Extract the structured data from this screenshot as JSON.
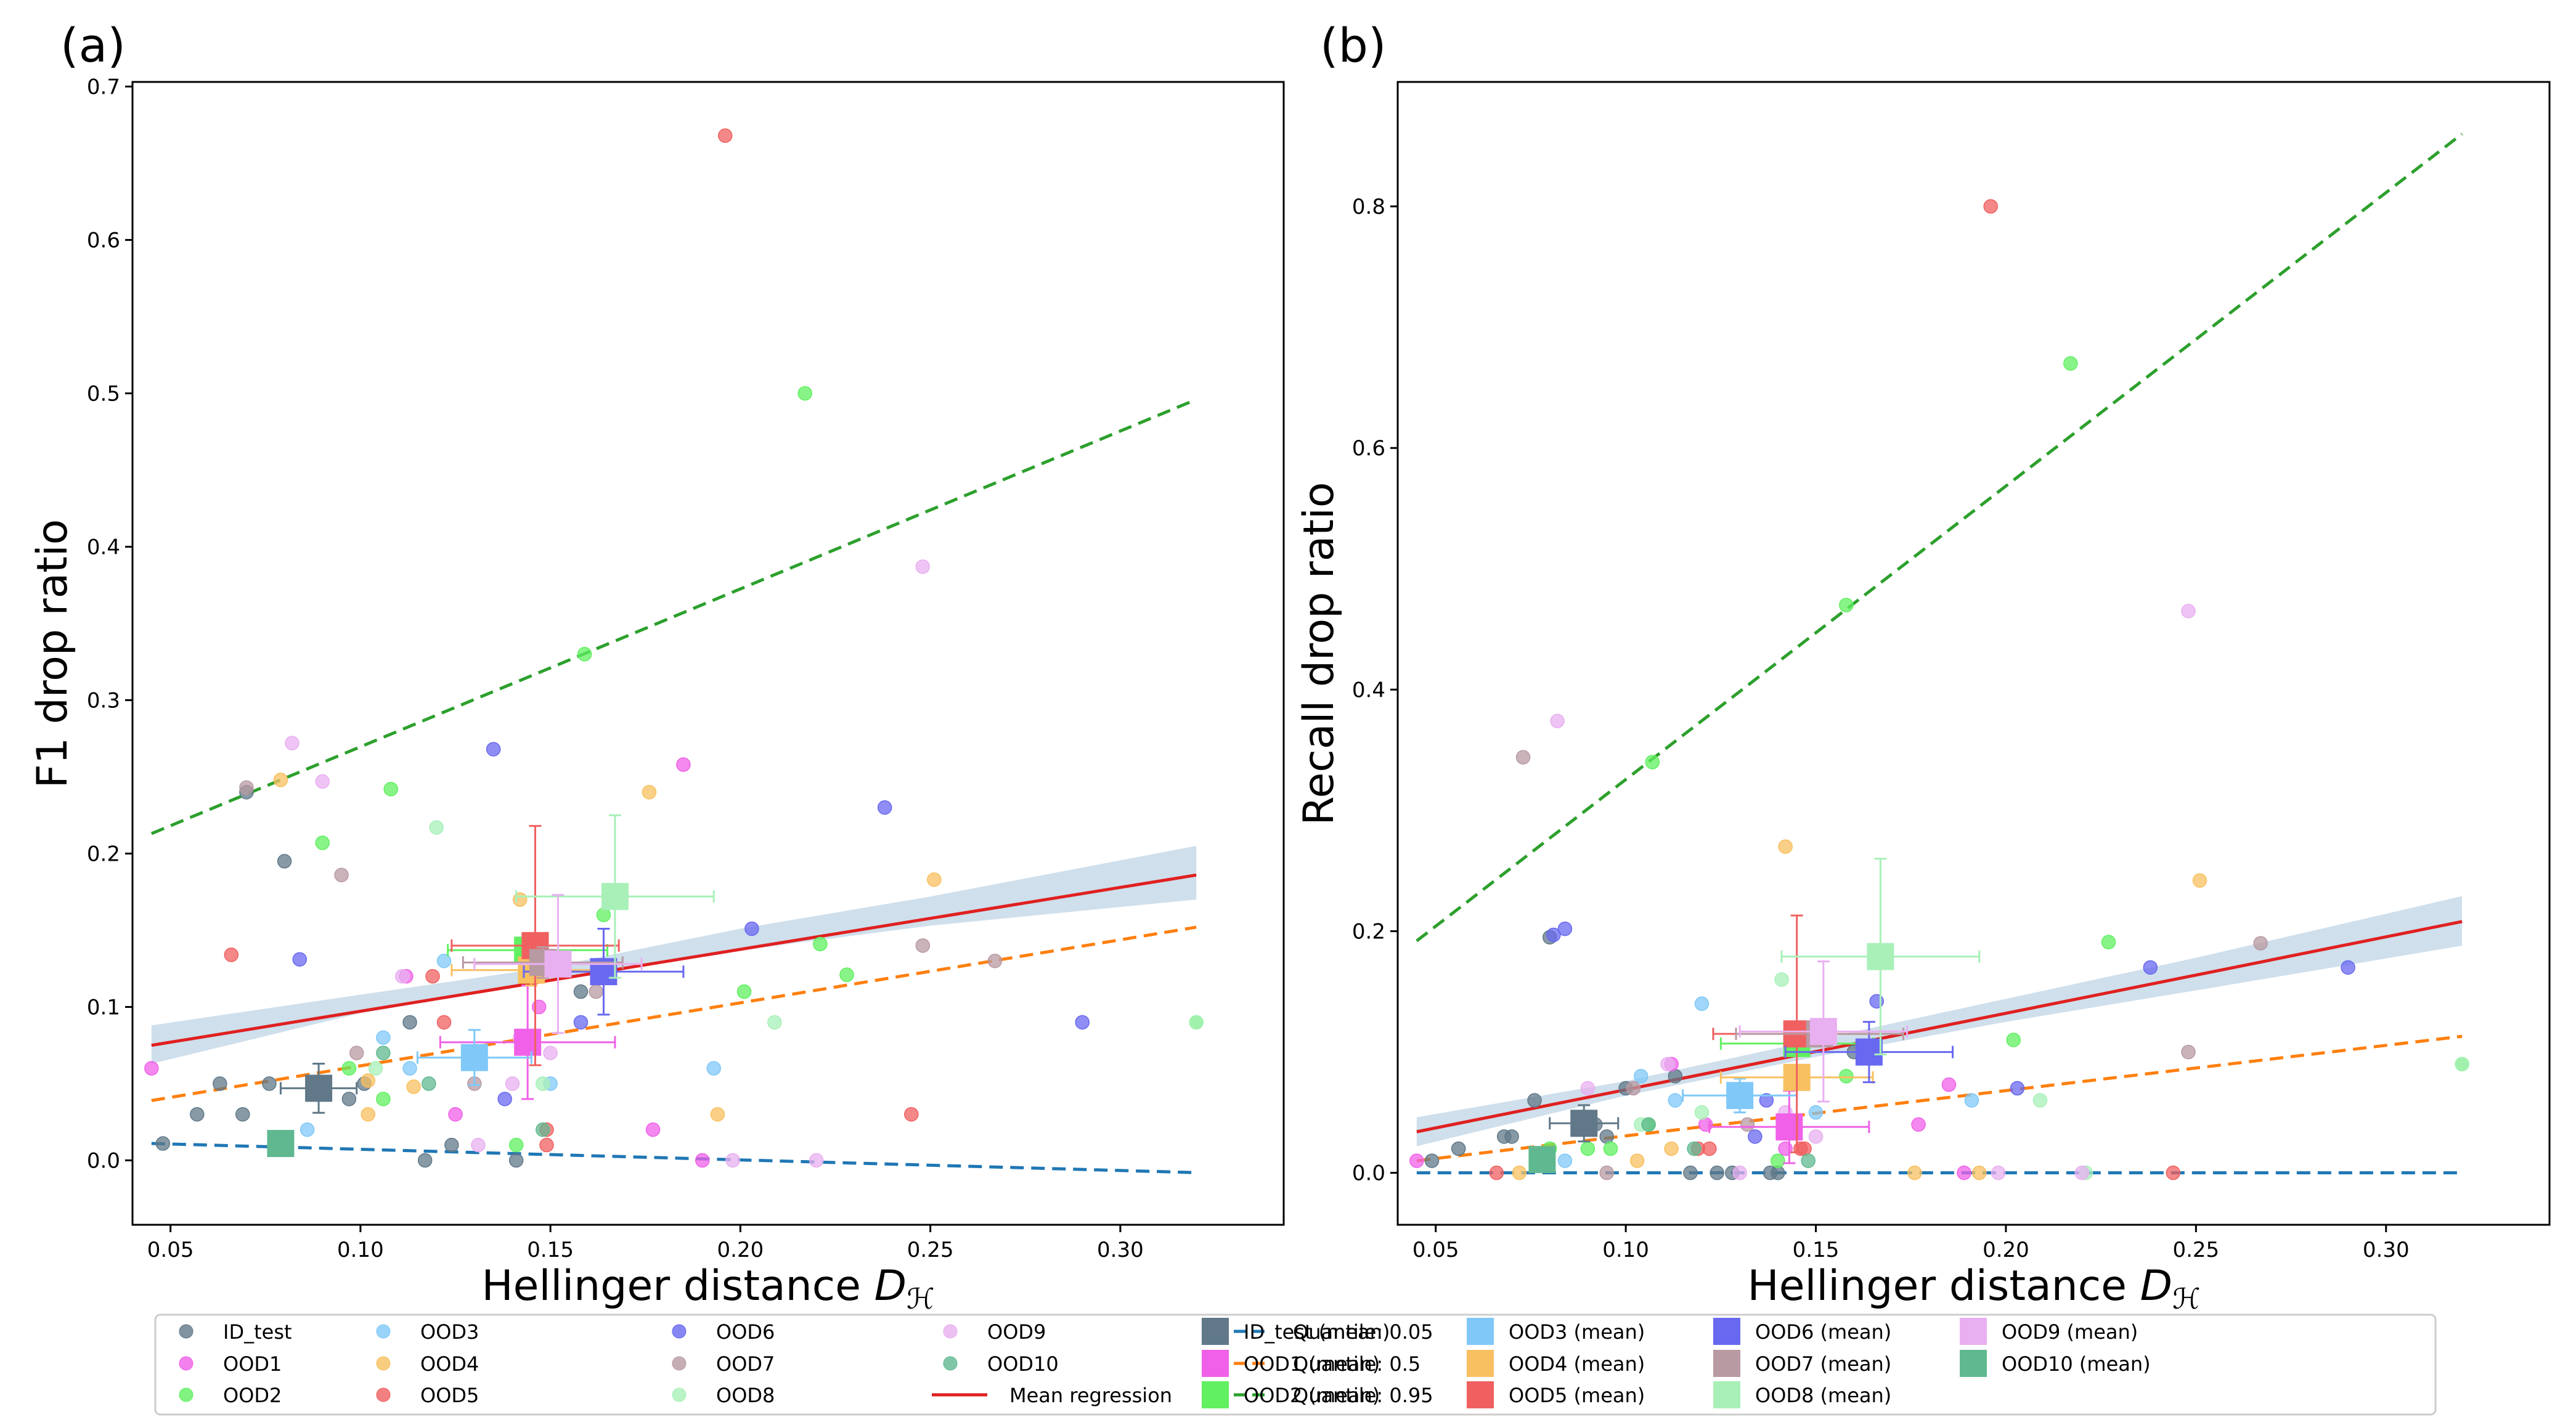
{
  "colors": {
    "ID_test": "#607888",
    "OOD1": "#f060e8",
    "OOD2": "#60f060",
    "OOD3": "#80c8f8",
    "OOD4": "#f8c060",
    "OOD5": "#f06060",
    "OOD6": "#6868f0",
    "OOD7": "#b89aa2",
    "OOD8": "#a8f0b8",
    "OOD9": "#e8b0f0",
    "OOD10": "#60b890",
    "mean_regression": "#e02020",
    "ci_band": "#a8c4dc",
    "q05": "#1f77b4",
    "q50": "#ff7f0e",
    "q95": "#2ca02c"
  },
  "legend": {
    "point_labels": [
      "ID_test",
      "OOD1",
      "OOD2",
      "OOD3",
      "OOD4",
      "OOD5",
      "OOD6",
      "OOD7",
      "OOD8",
      "OOD9",
      "OOD10"
    ],
    "line_labels": [
      "Mean regression",
      "Quantile: 0.05",
      "Quantile: 0.5",
      "Quantile: 0.95"
    ],
    "mean_labels": [
      "ID_test (mean)",
      "OOD1 (mean)",
      "OOD2 (mean)",
      "OOD3 (mean)",
      "OOD4 (mean)",
      "OOD5 (mean)",
      "OOD6 (mean)",
      "OOD7 (mean)",
      "OOD8 (mean)",
      "OOD9 (mean)",
      "OOD10 (mean)"
    ]
  },
  "chart_data": [
    {
      "type": "scatter",
      "panel": "(a)",
      "xlabel": "Hellinger distance D_H",
      "ylabel": "F1 drop ratio",
      "xlim": [
        0.04,
        0.343
      ],
      "ylim": [
        -0.042,
        0.703
      ],
      "xticks": [
        0.05,
        0.1,
        0.15,
        0.2,
        0.25,
        0.3
      ],
      "xtick_labels": [
        "0.05",
        "0.10",
        "0.15",
        "0.20",
        "0.25",
        "0.30"
      ],
      "yticks": [
        0.0,
        0.1,
        0.2,
        0.3,
        0.4,
        0.5,
        0.6,
        0.7
      ],
      "ytick_labels": [
        "0.0",
        "0.1",
        "0.2",
        "0.3",
        "0.4",
        "0.5",
        "0.6",
        "0.7"
      ],
      "points": {
        "ID_test": [
          [
            0.048,
            0.011
          ],
          [
            0.057,
            0.03
          ],
          [
            0.063,
            0.05
          ],
          [
            0.069,
            0.03
          ],
          [
            0.07,
            0.24
          ],
          [
            0.076,
            0.05
          ],
          [
            0.08,
            0.195
          ],
          [
            0.097,
            0.04
          ],
          [
            0.101,
            0.05
          ],
          [
            0.113,
            0.09
          ],
          [
            0.117,
            0.0
          ],
          [
            0.124,
            0.01
          ],
          [
            0.141,
            0.0
          ],
          [
            0.158,
            0.11
          ]
        ],
        "OOD1": [
          [
            0.045,
            0.06
          ],
          [
            0.112,
            0.12
          ],
          [
            0.125,
            0.03
          ],
          [
            0.147,
            0.1
          ],
          [
            0.177,
            0.02
          ],
          [
            0.185,
            0.258
          ],
          [
            0.19,
            0.0
          ]
        ],
        "OOD2": [
          [
            0.09,
            0.207
          ],
          [
            0.097,
            0.06
          ],
          [
            0.106,
            0.04
          ],
          [
            0.108,
            0.242
          ],
          [
            0.141,
            0.01
          ],
          [
            0.159,
            0.33
          ],
          [
            0.164,
            0.16
          ],
          [
            0.201,
            0.11
          ],
          [
            0.217,
            0.5
          ],
          [
            0.221,
            0.141
          ],
          [
            0.228,
            0.121
          ],
          [
            0.32,
            0.09
          ]
        ],
        "OOD3": [
          [
            0.086,
            0.02
          ],
          [
            0.106,
            0.08
          ],
          [
            0.113,
            0.06
          ],
          [
            0.122,
            0.13
          ],
          [
            0.15,
            0.05
          ],
          [
            0.193,
            0.06
          ]
        ],
        "OOD4": [
          [
            0.079,
            0.248
          ],
          [
            0.102,
            0.03
          ],
          [
            0.102,
            0.052
          ],
          [
            0.114,
            0.048
          ],
          [
            0.142,
            0.17
          ],
          [
            0.176,
            0.24
          ],
          [
            0.194,
            0.03
          ],
          [
            0.251,
            0.183
          ]
        ],
        "OOD5": [
          [
            0.066,
            0.134
          ],
          [
            0.119,
            0.12
          ],
          [
            0.122,
            0.09
          ],
          [
            0.149,
            0.01
          ],
          [
            0.149,
            0.02
          ],
          [
            0.196,
            0.668
          ],
          [
            0.245,
            0.03
          ]
        ],
        "OOD6": [
          [
            0.084,
            0.131
          ],
          [
            0.135,
            0.268
          ],
          [
            0.138,
            0.04
          ],
          [
            0.158,
            0.09
          ],
          [
            0.203,
            0.151
          ],
          [
            0.238,
            0.23
          ],
          [
            0.29,
            0.09
          ]
        ],
        "OOD7": [
          [
            0.07,
            0.243
          ],
          [
            0.095,
            0.186
          ],
          [
            0.099,
            0.07
          ],
          [
            0.13,
            0.05
          ],
          [
            0.162,
            0.11
          ],
          [
            0.248,
            0.14
          ],
          [
            0.267,
            0.13
          ]
        ],
        "OOD8": [
          [
            0.104,
            0.06
          ],
          [
            0.12,
            0.217
          ],
          [
            0.148,
            0.05
          ],
          [
            0.209,
            0.09
          ],
          [
            0.32,
            0.09
          ]
        ],
        "OOD9": [
          [
            0.082,
            0.272
          ],
          [
            0.09,
            0.247
          ],
          [
            0.111,
            0.12
          ],
          [
            0.131,
            0.01
          ],
          [
            0.14,
            0.05
          ],
          [
            0.142,
            0.08
          ],
          [
            0.15,
            0.07
          ],
          [
            0.198,
            0.0
          ],
          [
            0.22,
            0.0
          ],
          [
            0.248,
            0.387
          ]
        ],
        "OOD10": [
          [
            0.106,
            0.07
          ],
          [
            0.118,
            0.05
          ],
          [
            0.148,
            0.02
          ]
        ]
      },
      "means": {
        "ID_test": {
          "x": 0.089,
          "y": 0.047,
          "xerr": 0.01,
          "yerr": 0.016
        },
        "OOD1": {
          "x": 0.144,
          "y": 0.077,
          "xerr": 0.023,
          "yerr": 0.037
        },
        "OOD2": {
          "x": 0.144,
          "y": 0.137,
          "xerr": 0.021,
          "yerr": 0.01
        },
        "OOD3": {
          "x": 0.13,
          "y": 0.067,
          "xerr": 0.015,
          "yerr": 0.018
        },
        "OOD4": {
          "x": 0.145,
          "y": 0.124,
          "xerr": 0.021,
          "yerr": 0.01
        },
        "OOD5": {
          "x": 0.146,
          "y": 0.14,
          "xerr": 0.022,
          "yerr": 0.078
        },
        "OOD6": {
          "x": 0.164,
          "y": 0.123,
          "xerr": 0.021,
          "yerr": 0.028
        },
        "OOD7": {
          "x": 0.148,
          "y": 0.129,
          "xerr": 0.021,
          "yerr": 0.01
        },
        "OOD8": {
          "x": 0.167,
          "y": 0.172,
          "xerr": 0.026,
          "yerr": 0.053
        },
        "OOD9": {
          "x": 0.152,
          "y": 0.128,
          "xerr": 0.022,
          "yerr": 0.045
        },
        "OOD10": {
          "x": 0.079,
          "y": 0.011,
          "xerr": 0.0,
          "yerr": 0.0
        }
      },
      "mean_regression": {
        "x": [
          0.045,
          0.32
        ],
        "y": [
          0.075,
          0.186
        ]
      },
      "ci_band": {
        "x": [
          0.045,
          0.1,
          0.15,
          0.2,
          0.25,
          0.32
        ],
        "lower": [
          0.063,
          0.096,
          0.117,
          0.137,
          0.153,
          0.17
        ],
        "upper": [
          0.088,
          0.108,
          0.126,
          0.151,
          0.172,
          0.205
        ]
      },
      "quantile_05": {
        "x": [
          0.045,
          0.32
        ],
        "y": [
          0.011,
          -0.008
        ]
      },
      "quantile_50": {
        "x": [
          0.045,
          0.32
        ],
        "y": [
          0.039,
          0.152
        ]
      },
      "quantile_95": {
        "x": [
          0.045,
          0.32
        ],
        "y": [
          0.213,
          0.496
        ]
      }
    },
    {
      "type": "scatter",
      "panel": "(b)",
      "xlabel": "Hellinger distance D_H",
      "ylabel": "Recall drop ratio",
      "xlim": [
        0.04,
        0.343
      ],
      "ylim": [
        -0.043,
        0.903
      ],
      "xticks": [
        0.05,
        0.1,
        0.15,
        0.2,
        0.25,
        0.3
      ],
      "xtick_labels": [
        "0.05",
        "0.10",
        "0.15",
        "0.20",
        "0.25",
        "0.30"
      ],
      "yticks": [
        0.0,
        0.2,
        0.4,
        0.6,
        0.8
      ],
      "ytick_labels": [
        "0.0",
        "0.2",
        "0.4",
        "0.6",
        "0.8"
      ],
      "points": {
        "ID_test": [
          [
            0.049,
            0.01
          ],
          [
            0.056,
            0.02
          ],
          [
            0.068,
            0.03
          ],
          [
            0.07,
            0.03
          ],
          [
            0.076,
            0.06
          ],
          [
            0.08,
            0.195
          ],
          [
            0.092,
            0.04
          ],
          [
            0.095,
            0.03
          ],
          [
            0.1,
            0.07
          ],
          [
            0.113,
            0.08
          ],
          [
            0.117,
            0.0
          ],
          [
            0.124,
            0.0
          ],
          [
            0.128,
            0.0
          ],
          [
            0.138,
            0.0
          ],
          [
            0.14,
            0.0
          ],
          [
            0.16,
            0.1
          ]
        ],
        "OOD1": [
          [
            0.045,
            0.01
          ],
          [
            0.112,
            0.09
          ],
          [
            0.121,
            0.04
          ],
          [
            0.142,
            0.02
          ],
          [
            0.177,
            0.04
          ],
          [
            0.185,
            0.073
          ],
          [
            0.189,
            0.0
          ]
        ],
        "OOD2": [
          [
            0.08,
            0.02
          ],
          [
            0.09,
            0.02
          ],
          [
            0.096,
            0.02
          ],
          [
            0.106,
            0.04
          ],
          [
            0.107,
            0.34
          ],
          [
            0.14,
            0.01
          ],
          [
            0.158,
            0.47
          ],
          [
            0.158,
            0.08
          ],
          [
            0.202,
            0.11
          ],
          [
            0.217,
            0.67
          ],
          [
            0.227,
            0.191
          ],
          [
            0.32,
            0.09
          ]
        ],
        "OOD3": [
          [
            0.084,
            0.01
          ],
          [
            0.104,
            0.08
          ],
          [
            0.113,
            0.06
          ],
          [
            0.12,
            0.14
          ],
          [
            0.15,
            0.05
          ],
          [
            0.191,
            0.06
          ]
        ],
        "OOD4": [
          [
            0.072,
            0.0
          ],
          [
            0.103,
            0.01
          ],
          [
            0.112,
            0.02
          ],
          [
            0.142,
            0.27
          ],
          [
            0.176,
            0.0
          ],
          [
            0.193,
            0.0
          ],
          [
            0.251,
            0.242
          ]
        ],
        "OOD5": [
          [
            0.066,
            0.0
          ],
          [
            0.119,
            0.02
          ],
          [
            0.122,
            0.02
          ],
          [
            0.146,
            0.02
          ],
          [
            0.147,
            0.02
          ],
          [
            0.196,
            0.8
          ],
          [
            0.244,
            0.0
          ]
        ],
        "OOD6": [
          [
            0.081,
            0.197
          ],
          [
            0.084,
            0.202
          ],
          [
            0.134,
            0.03
          ],
          [
            0.137,
            0.06
          ],
          [
            0.166,
            0.142
          ],
          [
            0.203,
            0.07
          ],
          [
            0.238,
            0.17
          ],
          [
            0.29,
            0.17
          ]
        ],
        "OOD7": [
          [
            0.073,
            0.344
          ],
          [
            0.095,
            0.0
          ],
          [
            0.102,
            0.07
          ],
          [
            0.132,
            0.04
          ],
          [
            0.163,
            0.1
          ],
          [
            0.248,
            0.1
          ],
          [
            0.267,
            0.19
          ]
        ],
        "OOD8": [
          [
            0.104,
            0.04
          ],
          [
            0.12,
            0.05
          ],
          [
            0.141,
            0.16
          ],
          [
            0.209,
            0.06
          ],
          [
            0.221,
            0.0
          ],
          [
            0.32,
            0.09
          ]
        ],
        "OOD9": [
          [
            0.082,
            0.374
          ],
          [
            0.09,
            0.07
          ],
          [
            0.111,
            0.09
          ],
          [
            0.13,
            0.0
          ],
          [
            0.142,
            0.05
          ],
          [
            0.15,
            0.03
          ],
          [
            0.198,
            0.0
          ],
          [
            0.22,
            0.0
          ],
          [
            0.248,
            0.465
          ]
        ],
        "OOD10": [
          [
            0.106,
            0.04
          ],
          [
            0.118,
            0.02
          ],
          [
            0.148,
            0.01
          ]
        ]
      },
      "means": {
        "ID_test": {
          "x": 0.089,
          "y": 0.041,
          "xerr": 0.009,
          "yerr": 0.015
        },
        "OOD1": {
          "x": 0.143,
          "y": 0.038,
          "xerr": 0.021,
          "yerr": 0.03
        },
        "OOD2": {
          "x": 0.145,
          "y": 0.107,
          "xerr": 0.02,
          "yerr": 0.01
        },
        "OOD3": {
          "x": 0.13,
          "y": 0.064,
          "xerr": 0.015,
          "yerr": 0.014
        },
        "OOD4": {
          "x": 0.145,
          "y": 0.079,
          "xerr": 0.02,
          "yerr": 0.01
        },
        "OOD5": {
          "x": 0.145,
          "y": 0.115,
          "xerr": 0.022,
          "yerr": 0.098
        },
        "OOD6": {
          "x": 0.164,
          "y": 0.1,
          "xerr": 0.022,
          "yerr": 0.025
        },
        "OOD7": {
          "x": 0.151,
          "y": 0.115,
          "xerr": 0.022,
          "yerr": 0.01
        },
        "OOD8": {
          "x": 0.167,
          "y": 0.179,
          "xerr": 0.026,
          "yerr": 0.081
        },
        "OOD9": {
          "x": 0.152,
          "y": 0.117,
          "xerr": 0.022,
          "yerr": 0.058
        },
        "OOD10": {
          "x": 0.078,
          "y": 0.011,
          "xerr": 0.0,
          "yerr": 0.0
        }
      },
      "mean_regression": {
        "x": [
          0.045,
          0.32
        ],
        "y": [
          0.034,
          0.208
        ]
      },
      "ci_band": {
        "x": [
          0.045,
          0.1,
          0.15,
          0.2,
          0.25,
          0.32
        ],
        "lower": [
          0.022,
          0.064,
          0.096,
          0.125,
          0.151,
          0.188
        ],
        "upper": [
          0.046,
          0.076,
          0.11,
          0.144,
          0.178,
          0.229
        ]
      },
      "quantile_05": {
        "x": [
          0.045,
          0.32
        ],
        "y": [
          0.0,
          0.0
        ]
      },
      "quantile_50": {
        "x": [
          0.045,
          0.32
        ],
        "y": [
          0.01,
          0.113
        ]
      },
      "quantile_95": {
        "x": [
          0.045,
          0.32
        ],
        "y": [
          0.192,
          0.86
        ]
      }
    }
  ]
}
